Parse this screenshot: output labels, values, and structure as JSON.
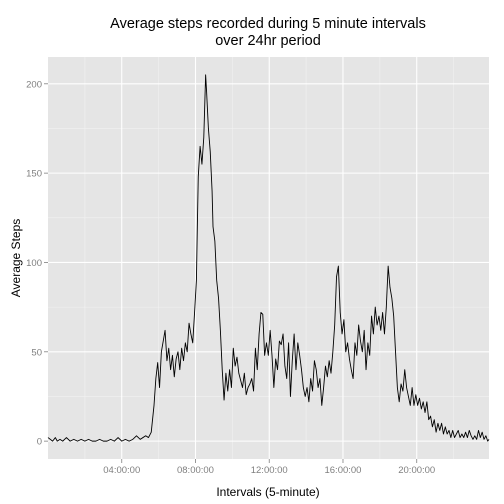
{
  "chart_data": {
    "type": "line",
    "title_line1": "Average steps recorded during 5 minute intervals",
    "title_line2": "over 24hr period",
    "xlabel": "Intervals (5-minute)",
    "ylabel": "Average Steps",
    "x_unit": "hours since 00:00",
    "xlim": [
      0,
      23.92
    ],
    "ylim": [
      -10,
      215
    ],
    "x_ticks": [
      {
        "value": 4,
        "label": "04:00:00"
      },
      {
        "value": 8,
        "label": "08:00:00"
      },
      {
        "value": 12,
        "label": "12:00:00"
      },
      {
        "value": 16,
        "label": "16:00:00"
      },
      {
        "value": 20,
        "label": "20:00:00"
      }
    ],
    "y_ticks": [
      {
        "value": 0,
        "label": "0"
      },
      {
        "value": 50,
        "label": "50"
      },
      {
        "value": 100,
        "label": "100"
      },
      {
        "value": 150,
        "label": "150"
      },
      {
        "value": 200,
        "label": "200"
      }
    ],
    "grid": true,
    "panel_bg": "#e5e5e5",
    "grid_color": "#ffffff",
    "line_color": "#000000",
    "series": [
      {
        "points": [
          [
            0.0,
            2
          ],
          [
            0.25,
            0
          ],
          [
            0.4,
            2
          ],
          [
            0.5,
            0
          ],
          [
            0.65,
            1
          ],
          [
            0.8,
            0
          ],
          [
            1.0,
            2
          ],
          [
            1.2,
            0
          ],
          [
            1.4,
            1
          ],
          [
            1.6,
            0
          ],
          [
            1.8,
            1
          ],
          [
            2.0,
            0
          ],
          [
            2.2,
            1
          ],
          [
            2.4,
            0
          ],
          [
            2.6,
            0
          ],
          [
            2.8,
            1
          ],
          [
            3.0,
            0
          ],
          [
            3.2,
            0
          ],
          [
            3.4,
            1
          ],
          [
            3.6,
            0
          ],
          [
            3.8,
            2
          ],
          [
            4.0,
            0
          ],
          [
            4.2,
            1
          ],
          [
            4.4,
            0
          ],
          [
            4.6,
            1
          ],
          [
            4.8,
            3
          ],
          [
            5.0,
            1
          ],
          [
            5.15,
            2
          ],
          [
            5.3,
            3
          ],
          [
            5.45,
            2
          ],
          [
            5.6,
            5
          ],
          [
            5.75,
            20
          ],
          [
            5.85,
            35
          ],
          [
            5.95,
            44
          ],
          [
            6.05,
            30
          ],
          [
            6.15,
            50
          ],
          [
            6.25,
            56
          ],
          [
            6.35,
            62
          ],
          [
            6.45,
            45
          ],
          [
            6.55,
            52
          ],
          [
            6.65,
            40
          ],
          [
            6.75,
            48
          ],
          [
            6.85,
            36
          ],
          [
            6.95,
            46
          ],
          [
            7.05,
            50
          ],
          [
            7.15,
            40
          ],
          [
            7.25,
            52
          ],
          [
            7.35,
            45
          ],
          [
            7.45,
            55
          ],
          [
            7.55,
            50
          ],
          [
            7.65,
            66
          ],
          [
            7.75,
            60
          ],
          [
            7.85,
            55
          ],
          [
            7.95,
            72
          ],
          [
            8.05,
            90
          ],
          [
            8.1,
            120
          ],
          [
            8.15,
            148
          ],
          [
            8.25,
            165
          ],
          [
            8.35,
            155
          ],
          [
            8.45,
            170
          ],
          [
            8.55,
            205
          ],
          [
            8.6,
            196
          ],
          [
            8.7,
            175
          ],
          [
            8.8,
            162
          ],
          [
            8.9,
            140
          ],
          [
            8.95,
            120
          ],
          [
            9.05,
            112
          ],
          [
            9.15,
            90
          ],
          [
            9.25,
            80
          ],
          [
            9.35,
            62
          ],
          [
            9.45,
            40
          ],
          [
            9.55,
            23
          ],
          [
            9.65,
            38
          ],
          [
            9.75,
            28
          ],
          [
            9.85,
            40
          ],
          [
            9.95,
            30
          ],
          [
            10.05,
            52
          ],
          [
            10.15,
            42
          ],
          [
            10.25,
            47
          ],
          [
            10.35,
            38
          ],
          [
            10.45,
            34
          ],
          [
            10.55,
            30
          ],
          [
            10.65,
            38
          ],
          [
            10.75,
            26
          ],
          [
            10.85,
            30
          ],
          [
            10.95,
            32
          ],
          [
            11.05,
            35
          ],
          [
            11.15,
            28
          ],
          [
            11.25,
            52
          ],
          [
            11.35,
            40
          ],
          [
            11.45,
            60
          ],
          [
            11.55,
            72
          ],
          [
            11.65,
            71
          ],
          [
            11.75,
            48
          ],
          [
            11.85,
            55
          ],
          [
            11.95,
            48
          ],
          [
            12.05,
            62
          ],
          [
            12.15,
            48
          ],
          [
            12.25,
            30
          ],
          [
            12.35,
            46
          ],
          [
            12.45,
            40
          ],
          [
            12.55,
            56
          ],
          [
            12.65,
            54
          ],
          [
            12.75,
            60
          ],
          [
            12.85,
            42
          ],
          [
            12.95,
            35
          ],
          [
            13.05,
            55
          ],
          [
            13.15,
            25
          ],
          [
            13.25,
            45
          ],
          [
            13.35,
            60
          ],
          [
            13.45,
            40
          ],
          [
            13.55,
            55
          ],
          [
            13.65,
            48
          ],
          [
            13.75,
            40
          ],
          [
            13.85,
            30
          ],
          [
            13.95,
            25
          ],
          [
            14.05,
            30
          ],
          [
            14.15,
            22
          ],
          [
            14.25,
            35
          ],
          [
            14.35,
            28
          ],
          [
            14.45,
            45
          ],
          [
            14.55,
            40
          ],
          [
            14.65,
            30
          ],
          [
            14.75,
            35
          ],
          [
            14.85,
            20
          ],
          [
            14.95,
            30
          ],
          [
            15.05,
            42
          ],
          [
            15.15,
            36
          ],
          [
            15.25,
            45
          ],
          [
            15.35,
            38
          ],
          [
            15.45,
            50
          ],
          [
            15.55,
            65
          ],
          [
            15.65,
            92
          ],
          [
            15.75,
            98
          ],
          [
            15.85,
            72
          ],
          [
            15.95,
            60
          ],
          [
            16.05,
            68
          ],
          [
            16.15,
            50
          ],
          [
            16.25,
            55
          ],
          [
            16.35,
            46
          ],
          [
            16.45,
            40
          ],
          [
            16.55,
            35
          ],
          [
            16.65,
            55
          ],
          [
            16.75,
            48
          ],
          [
            16.85,
            65
          ],
          [
            16.95,
            56
          ],
          [
            17.05,
            50
          ],
          [
            17.15,
            62
          ],
          [
            17.25,
            40
          ],
          [
            17.35,
            55
          ],
          [
            17.45,
            48
          ],
          [
            17.55,
            70
          ],
          [
            17.65,
            60
          ],
          [
            17.75,
            75
          ],
          [
            17.85,
            65
          ],
          [
            17.95,
            70
          ],
          [
            18.05,
            62
          ],
          [
            18.15,
            72
          ],
          [
            18.25,
            60
          ],
          [
            18.35,
            75
          ],
          [
            18.45,
            98
          ],
          [
            18.55,
            86
          ],
          [
            18.65,
            80
          ],
          [
            18.75,
            70
          ],
          [
            18.85,
            50
          ],
          [
            18.95,
            30
          ],
          [
            19.05,
            22
          ],
          [
            19.15,
            32
          ],
          [
            19.25,
            28
          ],
          [
            19.35,
            40
          ],
          [
            19.45,
            30
          ],
          [
            19.55,
            25
          ],
          [
            19.65,
            20
          ],
          [
            19.75,
            30
          ],
          [
            19.85,
            20
          ],
          [
            19.95,
            26
          ],
          [
            20.05,
            20
          ],
          [
            20.15,
            24
          ],
          [
            20.25,
            18
          ],
          [
            20.35,
            22
          ],
          [
            20.45,
            16
          ],
          [
            20.55,
            22
          ],
          [
            20.65,
            12
          ],
          [
            20.75,
            14
          ],
          [
            20.85,
            8
          ],
          [
            20.95,
            12
          ],
          [
            21.05,
            5
          ],
          [
            21.15,
            10
          ],
          [
            21.25,
            6
          ],
          [
            21.35,
            10
          ],
          [
            21.45,
            4
          ],
          [
            21.55,
            8
          ],
          [
            21.65,
            4
          ],
          [
            21.75,
            6
          ],
          [
            21.85,
            2
          ],
          [
            21.95,
            6
          ],
          [
            22.05,
            2
          ],
          [
            22.15,
            4
          ],
          [
            22.25,
            6
          ],
          [
            22.35,
            2
          ],
          [
            22.45,
            4
          ],
          [
            22.55,
            2
          ],
          [
            22.65,
            5
          ],
          [
            22.75,
            2
          ],
          [
            22.85,
            6
          ],
          [
            22.95,
            3
          ],
          [
            23.05,
            1
          ],
          [
            23.15,
            3
          ],
          [
            23.25,
            1
          ],
          [
            23.35,
            6
          ],
          [
            23.45,
            2
          ],
          [
            23.55,
            5
          ],
          [
            23.65,
            1
          ],
          [
            23.75,
            3
          ],
          [
            23.85,
            0
          ],
          [
            23.92,
            1
          ]
        ]
      }
    ]
  }
}
